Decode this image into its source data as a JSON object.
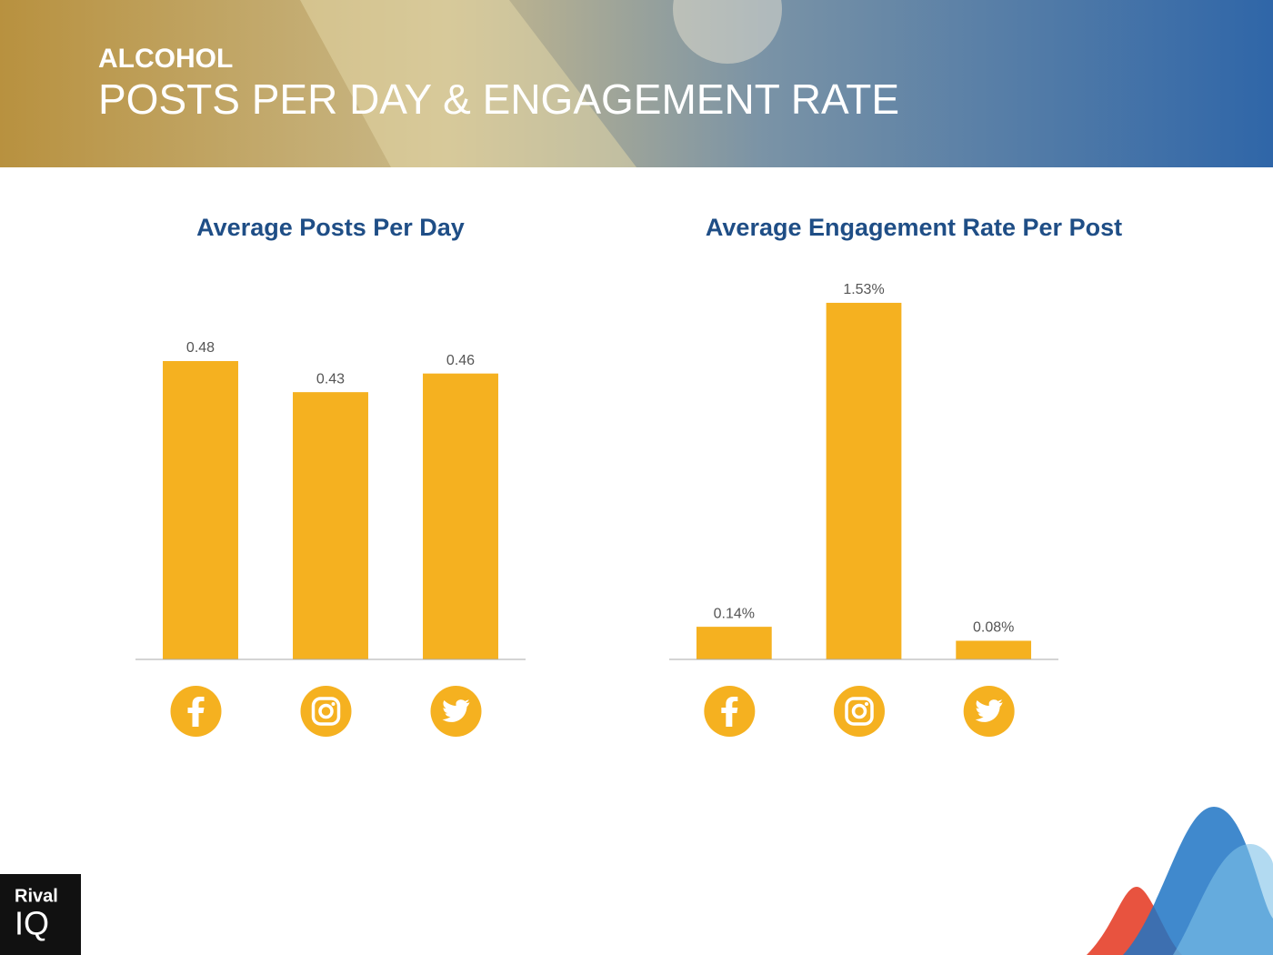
{
  "header": {
    "kicker": "ALCOHOL",
    "title": "POSTS PER DAY & ENGAGEMENT RATE"
  },
  "logo": {
    "top": "Rival",
    "bottom": "IQ"
  },
  "chart_data": [
    {
      "type": "bar",
      "title": "Average Posts Per Day",
      "categories": [
        null,
        null,
        null
      ],
      "values": [
        0.48,
        0.43,
        0.46
      ],
      "color": "#f5b120",
      "ylim": [
        0,
        0.6
      ]
    },
    {
      "type": "bar",
      "title": "Average Engagement Rate Per Post",
      "categories": [
        null,
        null,
        null
      ],
      "values": [
        0.14,
        1.53,
        0.08
      ],
      "value_labels": [
        "0.14%",
        "1.53%",
        "0.08%"
      ],
      "color": "#f5b120",
      "ylim": [
        0,
        1.6
      ]
    }
  ]
}
